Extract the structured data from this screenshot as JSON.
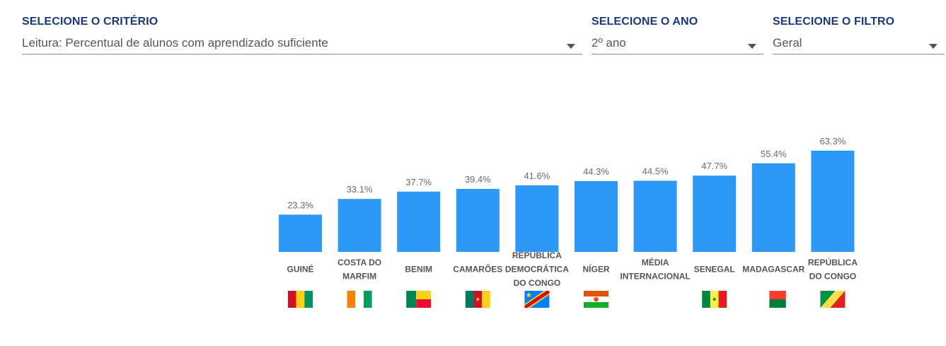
{
  "filters": {
    "criterio": {
      "label": "SELECIONE O CRITÉRIO",
      "value": "Leitura: Percentual de alunos com aprendizado suficiente"
    },
    "ano": {
      "label": "SELECIONE O ANO",
      "value": "2º ano"
    },
    "filtro": {
      "label": "SELECIONE O FILTRO",
      "value": "Geral"
    }
  },
  "colors": {
    "bar": "#2c98f7",
    "heading": "#1c3a7a"
  },
  "chart_data": {
    "type": "bar",
    "categories": [
      [
        "GUINÉ"
      ],
      [
        "COSTA DO",
        "MARFIM"
      ],
      [
        "BENIM"
      ],
      [
        "CAMARÕES"
      ],
      [
        "REPÚBLICA",
        "DEMOCRÁTICA",
        "DO CONGO"
      ],
      [
        "NÍGER"
      ],
      [
        "MÉDIA",
        "INTERNACIONAL"
      ],
      [
        "SENEGAL"
      ],
      [
        "MADAGASCAR"
      ],
      [
        "REPÚBLICA",
        "DO CONGO"
      ]
    ],
    "values": [
      23.3,
      33.1,
      37.7,
      39.4,
      41.6,
      44.3,
      44.5,
      47.7,
      55.4,
      63.3
    ],
    "value_labels": [
      "23.3%",
      "33.1%",
      "37.7%",
      "39.4%",
      "41.6%",
      "44.3%",
      "44.5%",
      "47.7%",
      "55.4%",
      "63.3%"
    ],
    "flags": [
      "guinea",
      "ivory-coast",
      "benin",
      "cameroon",
      "dr-congo",
      "niger",
      "",
      "senegal",
      "madagascar",
      "republic-of-congo"
    ],
    "title": "",
    "xlabel": "",
    "ylabel": "",
    "ylim": [
      0,
      100
    ],
    "grid": false
  }
}
